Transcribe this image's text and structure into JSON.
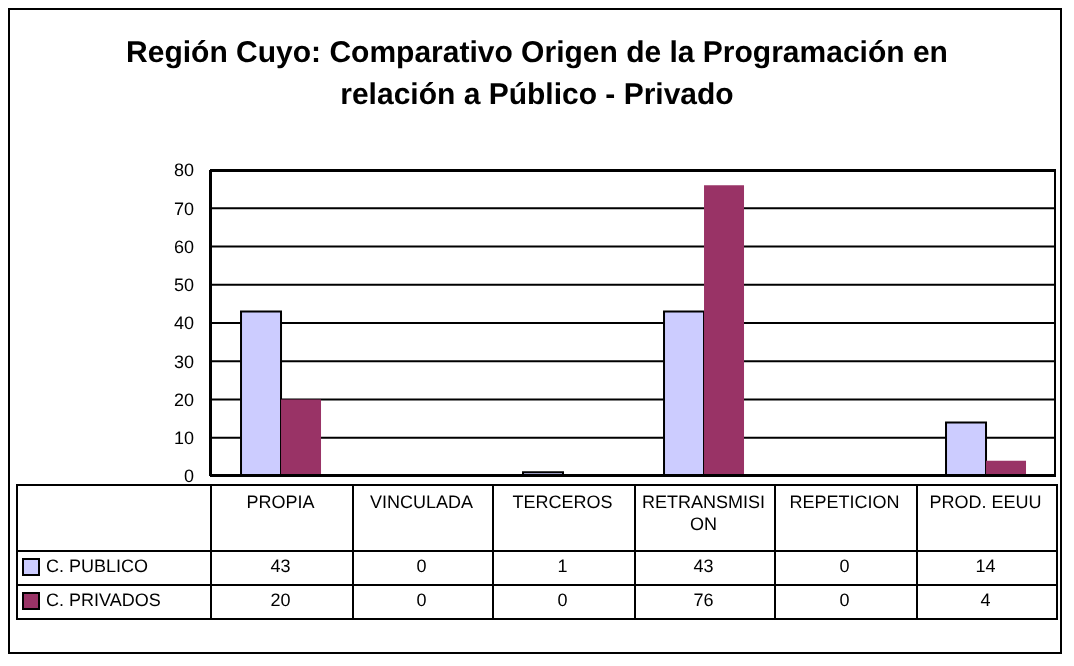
{
  "chart_data": {
    "type": "bar",
    "title": "Región Cuyo: Comparativo Origen de la Programación en relación a Público - Privado",
    "categories": [
      "PROPIA",
      "VINCULADA",
      "TERCEROS",
      "RETRANSMISION",
      "REPETICION",
      "PROD. EEUU"
    ],
    "series": [
      {
        "name": "C. PUBLICO",
        "color": "#ccccff",
        "values": [
          43,
          0,
          1,
          43,
          0,
          14
        ]
      },
      {
        "name": "C. PRIVADOS",
        "color": "#993366",
        "values": [
          20,
          0,
          0,
          76,
          0,
          4
        ]
      }
    ],
    "ylim": [
      0,
      80
    ],
    "yticks": [
      0,
      10,
      20,
      30,
      40,
      50,
      60,
      70,
      80
    ],
    "grid": "y",
    "legend": "bottom",
    "data_labels": true
  }
}
